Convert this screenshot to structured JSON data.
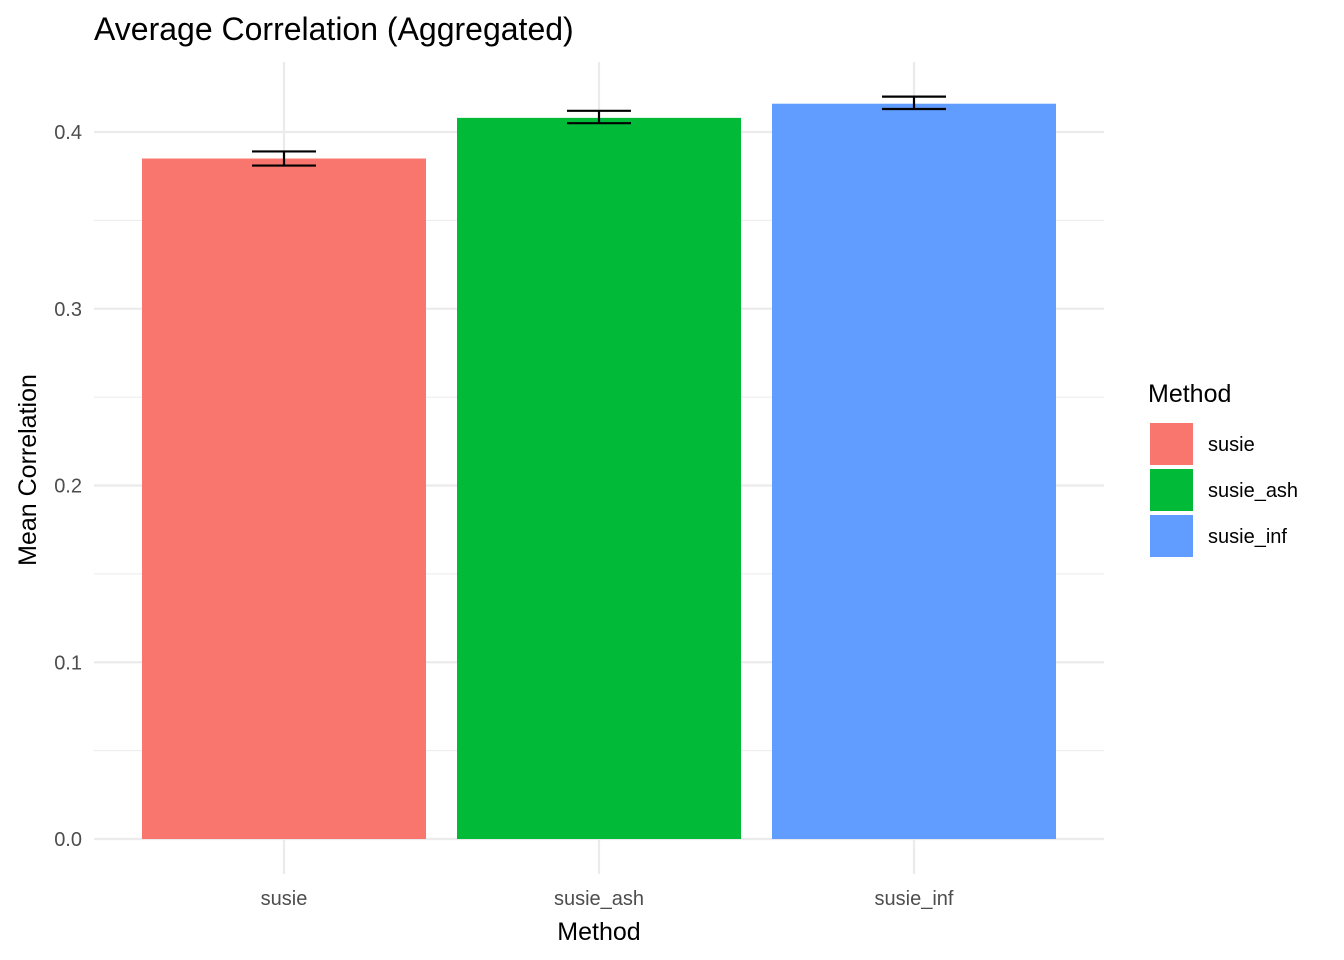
{
  "chart_data": {
    "type": "bar",
    "title": "Average Correlation (Aggregated)",
    "xlabel": "Method",
    "ylabel": "Mean Correlation",
    "categories": [
      "susie",
      "susie_ash",
      "susie_inf"
    ],
    "values": [
      0.385,
      0.408,
      0.416
    ],
    "error_low": [
      0.381,
      0.405,
      0.413
    ],
    "error_high": [
      0.389,
      0.412,
      0.42
    ],
    "colors": [
      "#F8766D",
      "#00BA38",
      "#619CFF"
    ],
    "ylim": [
      0,
      0.44
    ],
    "yticks": [
      0.0,
      0.1,
      0.2,
      0.3,
      0.4
    ],
    "ytick_labels": [
      "0.0",
      "0.1",
      "0.2",
      "0.3",
      "0.4"
    ],
    "grid": true,
    "legend": {
      "title": "Method",
      "position": "right",
      "entries": [
        "susie",
        "susie_ash",
        "susie_inf"
      ]
    }
  }
}
